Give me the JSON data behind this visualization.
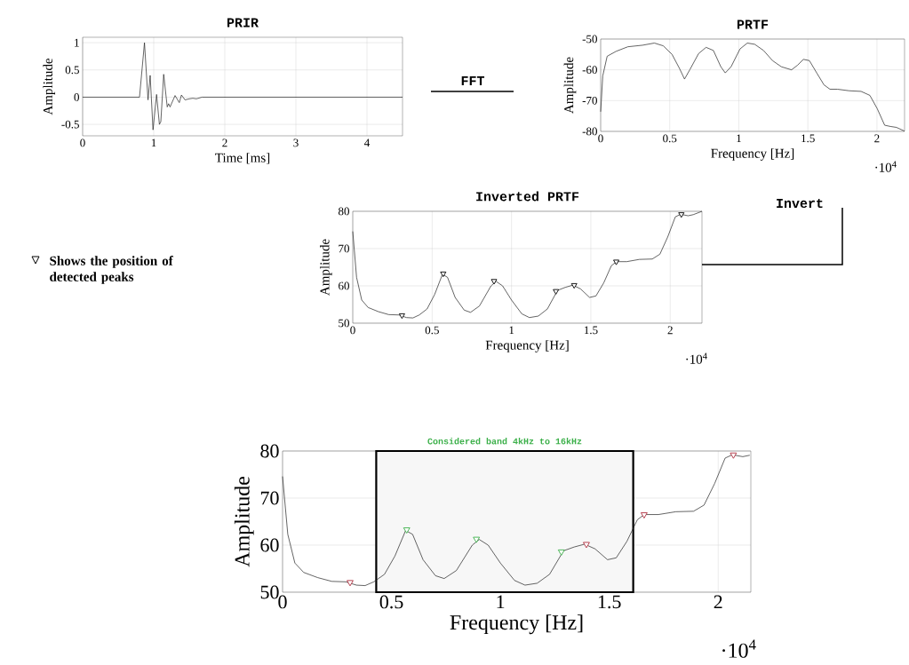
{
  "chart_data": [
    {
      "type": "line",
      "title": "PRIR",
      "xlabel": "Time [ms]",
      "ylabel": "Amplitude",
      "xlim": [
        0,
        4.5
      ],
      "ylim": [
        -0.71,
        1.1
      ],
      "xticks": [
        0,
        1,
        2,
        3,
        4
      ],
      "yticks": [
        -0.5,
        0,
        0.5,
        1
      ],
      "grid": true,
      "annotations": [
        "FFT"
      ],
      "series": [
        {
          "color": "#222222",
          "x": [
            0,
            0.8,
            0.87,
            0.92,
            0.95,
            0.99,
            1.04,
            1.08,
            1.1,
            1.14,
            1.19,
            1.21,
            1.23,
            1.3,
            1.36,
            1.39,
            1.44,
            1.5,
            1.55,
            1.6,
            1.68,
            4.5
          ],
          "values": [
            0,
            0,
            1,
            -0.05,
            0.4,
            -0.6,
            0.05,
            -0.5,
            -0.45,
            0.42,
            -0.18,
            -0.12,
            -0.18,
            0.03,
            -0.1,
            0.04,
            -0.05,
            -0.03,
            -0.02,
            -0.03,
            0,
            0
          ]
        }
      ]
    },
    {
      "type": "line",
      "title": "PRTF",
      "xlabel": "Frequency [Hz]",
      "ylabel": "Amplitude",
      "xlim": [
        0,
        2.2
      ],
      "ylim": [
        -80,
        -50
      ],
      "xticks": [
        0,
        0.5,
        1,
        1.5,
        2
      ],
      "yticks": [
        -80,
        -70,
        -60,
        -50
      ],
      "grid": true,
      "annotations": [
        "·10$^{4}$"
      ],
      "series": [
        {
          "color": "#222222",
          "x": [
            0,
            0.015,
            0.047,
            0.111,
            0.197,
            0.303,
            0.389,
            0.453,
            0.517,
            0.57,
            0.607,
            0.645,
            0.709,
            0.763,
            0.816,
            0.87,
            0.902,
            0.944,
            1.009,
            1.062,
            1.115,
            1.179,
            1.244,
            1.308,
            1.382,
            1.425,
            1.468,
            1.511,
            1.564,
            1.617,
            1.66,
            1.714,
            1.799,
            1.885,
            1.949,
            2.002,
            2.056,
            2.098,
            2.141,
            2.2
          ],
          "values": [
            -73.6,
            -62,
            -55.6,
            -54,
            -52.5,
            -52,
            -51.3,
            -52.2,
            -55,
            -59.5,
            -63,
            -60,
            -54.7,
            -52.7,
            -53.7,
            -59,
            -61,
            -59,
            -53.2,
            -51.3,
            -51.7,
            -53.7,
            -57,
            -59,
            -60,
            -58.5,
            -56.6,
            -57,
            -61,
            -64.9,
            -66.3,
            -66.3,
            -66.8,
            -67,
            -68.3,
            -72.6,
            -78,
            -78.4,
            -78.7,
            -79.9
          ]
        }
      ]
    },
    {
      "type": "line",
      "title": "Inverted PRTF",
      "xlabel": "Frequency [Hz]",
      "ylabel": "Amplitude",
      "xlim": [
        0,
        2.2
      ],
      "ylim": [
        50,
        80
      ],
      "xticks": [
        0,
        0.5,
        1,
        1.5,
        2
      ],
      "yticks": [
        50,
        60,
        70,
        80
      ],
      "grid": true,
      "annotations": [
        "·10$^{4}$",
        "Invert",
        "Shows the position of detected peaks"
      ],
      "series": [
        {
          "color": "#222222",
          "x": [
            0,
            0.024,
            0.0565,
            0.097,
            0.161,
            0.226,
            0.29,
            0.339,
            0.379,
            0.419,
            0.468,
            0.516,
            0.565,
            0.597,
            0.645,
            0.702,
            0.742,
            0.798,
            0.871,
            0.903,
            0.944,
            1.0,
            1.065,
            1.113,
            1.169,
            1.226,
            1.29,
            1.339,
            1.387,
            1.435,
            1.492,
            1.532,
            1.581,
            1.629,
            1.661,
            1.726,
            1.806,
            1.887,
            1.935,
            1.984,
            2.032,
            2.065,
            2.113,
            2.145,
            2.2
          ],
          "values": [
            74.6,
            62.3,
            56.2,
            54.2,
            53.1,
            52.3,
            52.2,
            51.5,
            51.4,
            52.2,
            53.8,
            57.7,
            63.1,
            62.3,
            56.9,
            53.5,
            52.9,
            54.6,
            60,
            61.2,
            60,
            56.2,
            52.5,
            51.5,
            51.9,
            53.8,
            58.8,
            59.6,
            60.2,
            59.2,
            56.9,
            57.3,
            60.8,
            65.4,
            66.5,
            66.5,
            67.1,
            67.2,
            68.5,
            73.1,
            78.5,
            79.2,
            78.8,
            79.1,
            80
          ]
        },
        {
          "type": "scatter",
          "marker": "triangle",
          "color": "#000000",
          "x": [
            0.31,
            0.57,
            0.89,
            1.28,
            1.395,
            1.66,
            2.07
          ],
          "values": [
            52.1,
            63.3,
            61.3,
            58.6,
            60.2,
            66.5,
            79.2
          ]
        }
      ]
    },
    {
      "type": "line",
      "xlabel": "Frequency [Hz]",
      "ylabel": "Amplitude",
      "xlim": [
        0,
        2.15
      ],
      "ylim": [
        50,
        80
      ],
      "xticks": [
        0,
        0.5,
        1,
        1.5,
        2
      ],
      "yticks": [
        50,
        60,
        70,
        80
      ],
      "grid": true,
      "annotations": [
        "·10$^{4}$"
      ],
      "bands": [
        {
          "axis": "x",
          "from": 0.43,
          "to": 1.61,
          "label": "Considered band 4kHz to 16kHz",
          "color": "#000000"
        }
      ],
      "series": [
        {
          "color": "#222222",
          "x": [
            0,
            0.024,
            0.0565,
            0.097,
            0.161,
            0.226,
            0.29,
            0.339,
            0.379,
            0.419,
            0.468,
            0.516,
            0.565,
            0.597,
            0.645,
            0.702,
            0.742,
            0.798,
            0.871,
            0.903,
            0.944,
            1.0,
            1.065,
            1.113,
            1.169,
            1.226,
            1.29,
            1.339,
            1.387,
            1.435,
            1.492,
            1.532,
            1.581,
            1.629,
            1.661,
            1.726,
            1.806,
            1.887,
            1.935,
            1.984,
            2.032,
            2.065,
            2.113,
            2.145
          ],
          "values": [
            74.6,
            62.3,
            56.2,
            54.2,
            53.1,
            52.3,
            52.2,
            51.5,
            51.4,
            52.2,
            53.8,
            57.7,
            63.1,
            62.3,
            56.9,
            53.5,
            52.9,
            54.6,
            60,
            61.2,
            60,
            56.2,
            52.5,
            51.5,
            51.9,
            53.8,
            58.8,
            59.6,
            60.2,
            59.2,
            56.9,
            57.3,
            60.8,
            65.4,
            66.5,
            66.5,
            67.1,
            67.2,
            68.5,
            73.1,
            78.5,
            79.2,
            78.8,
            79.1
          ]
        },
        {
          "type": "scatter",
          "marker": "triangle",
          "color": "#3cb04a",
          "x": [
            0.57,
            0.89,
            1.28
          ],
          "values": [
            63.3,
            61.3,
            58.6
          ]
        },
        {
          "type": "scatter",
          "marker": "triangle",
          "color": "#b03040",
          "x": [
            0.31,
            1.395,
            1.66,
            2.07
          ],
          "values": [
            52.1,
            60.2,
            66.5,
            79.2
          ]
        }
      ]
    }
  ]
}
